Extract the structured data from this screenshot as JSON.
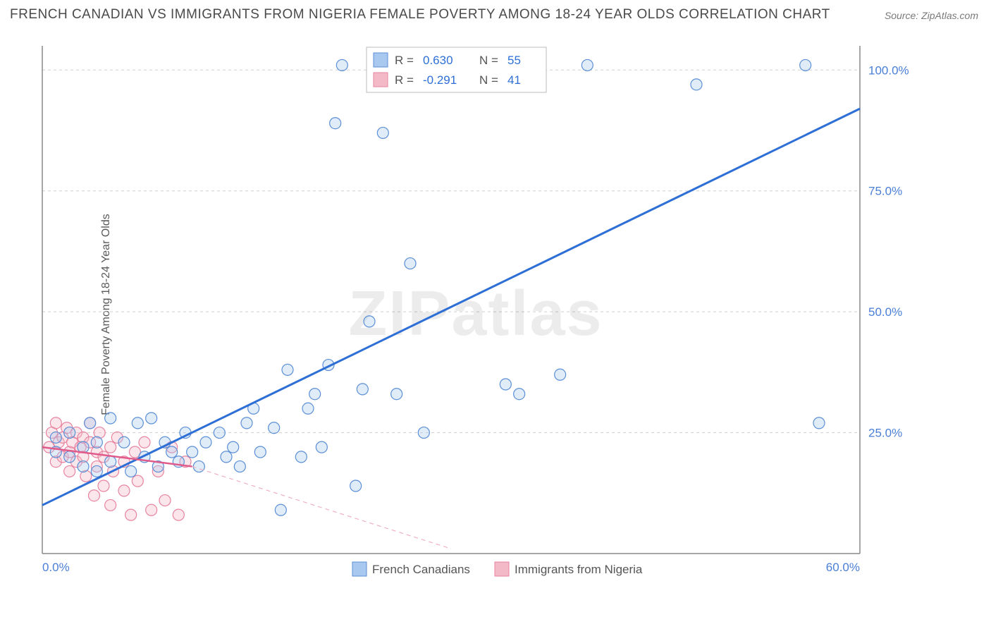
{
  "title": "FRENCH CANADIAN VS IMMIGRANTS FROM NIGERIA FEMALE POVERTY AMONG 18-24 YEAR OLDS CORRELATION CHART",
  "source": "Source: ZipAtlas.com",
  "ylabel": "Female Poverty Among 18-24 Year Olds",
  "watermark": "ZIPatlas",
  "chart": {
    "type": "scatter",
    "xlim": [
      0,
      60
    ],
    "ylim": [
      0,
      105
    ],
    "xticks": [
      {
        "v": 0,
        "label": "0.0%"
      },
      {
        "v": 60,
        "label": "60.0%"
      }
    ],
    "yticks": [
      {
        "v": 25,
        "label": "25.0%"
      },
      {
        "v": 50,
        "label": "50.0%"
      },
      {
        "v": 75,
        "label": "75.0%"
      },
      {
        "v": 100,
        "label": "100.0%"
      }
    ],
    "background_color": "#ffffff",
    "grid_color": "#d0d0d0",
    "axis_color": "#888888",
    "marker_radius": 8,
    "series": [
      {
        "name": "French Canadians",
        "color_fill": "#a9c8ef",
        "color_stroke": "#5a8fd6",
        "R": "0.630",
        "N": "55",
        "trend": {
          "x1": 0,
          "y1": 10,
          "x2": 60,
          "y2": 92,
          "color": "#2e6fd6"
        },
        "points": [
          [
            1,
            21
          ],
          [
            1,
            24
          ],
          [
            2,
            20
          ],
          [
            2,
            25
          ],
          [
            3,
            18
          ],
          [
            3,
            22
          ],
          [
            3.5,
            27
          ],
          [
            4,
            17
          ],
          [
            4,
            23
          ],
          [
            5,
            19
          ],
          [
            5,
            28
          ],
          [
            6,
            23
          ],
          [
            6.5,
            17
          ],
          [
            7,
            27
          ],
          [
            7.5,
            20
          ],
          [
            8,
            28
          ],
          [
            8.5,
            18
          ],
          [
            9,
            23
          ],
          [
            9.5,
            21
          ],
          [
            10,
            19
          ],
          [
            10.5,
            25
          ],
          [
            11,
            21
          ],
          [
            11.5,
            18
          ],
          [
            12,
            23
          ],
          [
            13,
            25
          ],
          [
            13.5,
            20
          ],
          [
            14,
            22
          ],
          [
            14.5,
            18
          ],
          [
            15,
            27
          ],
          [
            15.5,
            30
          ],
          [
            16,
            21
          ],
          [
            17,
            26
          ],
          [
            17.5,
            9
          ],
          [
            18,
            38
          ],
          [
            19,
            20
          ],
          [
            19.5,
            30
          ],
          [
            20,
            33
          ],
          [
            20.5,
            22
          ],
          [
            21,
            39
          ],
          [
            21.5,
            89
          ],
          [
            22,
            101
          ],
          [
            23,
            14
          ],
          [
            23.5,
            34
          ],
          [
            24,
            48
          ],
          [
            25,
            87
          ],
          [
            26,
            33
          ],
          [
            27,
            60
          ],
          [
            28,
            25
          ],
          [
            34,
            35
          ],
          [
            35,
            33
          ],
          [
            38,
            37
          ],
          [
            40,
            101
          ],
          [
            48,
            97
          ],
          [
            56,
            101
          ],
          [
            57,
            27
          ]
        ]
      },
      {
        "name": "Immigrants from Nigeria",
        "color_fill": "#f4b9c6",
        "color_stroke": "#e783a0",
        "R": "-0.291",
        "N": "41",
        "trend_solid": {
          "x1": 0,
          "y1": 22,
          "x2": 11,
          "y2": 18,
          "color": "#e05a8a"
        },
        "trend_dash": {
          "x1": 11,
          "y1": 18,
          "x2": 30,
          "y2": 1,
          "color": "#f0b0c0"
        },
        "points": [
          [
            0.5,
            22
          ],
          [
            0.7,
            25
          ],
          [
            1,
            19
          ],
          [
            1,
            27
          ],
          [
            1.2,
            23
          ],
          [
            1.5,
            20
          ],
          [
            1.5,
            24
          ],
          [
            1.8,
            26
          ],
          [
            2,
            21
          ],
          [
            2,
            17
          ],
          [
            2.2,
            23
          ],
          [
            2.5,
            25
          ],
          [
            2.5,
            19
          ],
          [
            2.8,
            22
          ],
          [
            3,
            20
          ],
          [
            3,
            24
          ],
          [
            3.2,
            16
          ],
          [
            3.5,
            23
          ],
          [
            3.5,
            27
          ],
          [
            3.8,
            12
          ],
          [
            4,
            18
          ],
          [
            4,
            21
          ],
          [
            4.2,
            25
          ],
          [
            4.5,
            14
          ],
          [
            4.5,
            20
          ],
          [
            5,
            10
          ],
          [
            5,
            22
          ],
          [
            5.2,
            17
          ],
          [
            5.5,
            24
          ],
          [
            6,
            13
          ],
          [
            6,
            19
          ],
          [
            6.5,
            8
          ],
          [
            6.8,
            21
          ],
          [
            7,
            15
          ],
          [
            7.5,
            23
          ],
          [
            8,
            9
          ],
          [
            8.5,
            17
          ],
          [
            9,
            11
          ],
          [
            9.5,
            22
          ],
          [
            10,
            8
          ],
          [
            10.5,
            19
          ]
        ]
      }
    ],
    "legend": [
      {
        "label": "French Canadians",
        "fill": "#a9c8ef",
        "stroke": "#5a8fd6"
      },
      {
        "label": "Immigrants from Nigeria",
        "fill": "#f4b9c6",
        "stroke": "#e783a0"
      }
    ]
  }
}
